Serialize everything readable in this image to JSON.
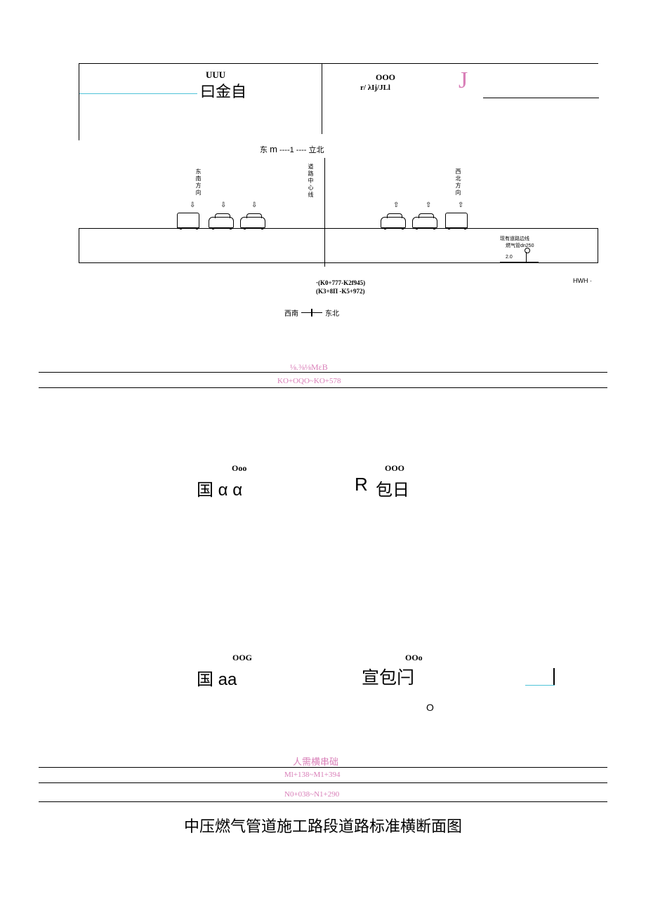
{
  "section1": {
    "left_top": "UUU",
    "left_main": "曰金自",
    "right_top": "OOO",
    "right_sub": "r/    λIj/JLl",
    "j_letter": "J"
  },
  "compass1": {
    "text_left": "东",
    "text_m": "m",
    "text_mid": "----1 ----",
    "text_right": "立北"
  },
  "cross_section": {
    "vt1": "东南方向",
    "vt2": "道路中心线",
    "vt3": "西北方向",
    "arrows_down": "⇩",
    "arrows_up": "⇧",
    "pipe_label1": "现有道路边线",
    "pipe_label2": "燃气管dn250",
    "pipe_dim": "2.0",
    "k_label1": "·(K0+777-K2f945)",
    "k_label2": "(K3+8Π -K5+972)",
    "hwh": "HWH ·"
  },
  "compass2": {
    "left": "西南",
    "right": "东北"
  },
  "pink_labels": {
    "l1": "⅛.⅜⅛MεB",
    "l2": "KO+OQO~KO+578",
    "l3": "人需横串础",
    "l4": "Ml+138~M1+394",
    "l5": "N0+038~N1+290"
  },
  "section2": {
    "left_top": "Ooo",
    "left_main": "国  α α",
    "right_top": "OOO",
    "right_r": "R",
    "right_cn": "包日"
  },
  "section3": {
    "left_top": "OOG",
    "left_main": "国 aa",
    "right_top": "OOo",
    "right_main": "宣包闩",
    "o_mark": "O"
  },
  "main_title": "中压燃气管道施工路段道路标准横断面图"
}
